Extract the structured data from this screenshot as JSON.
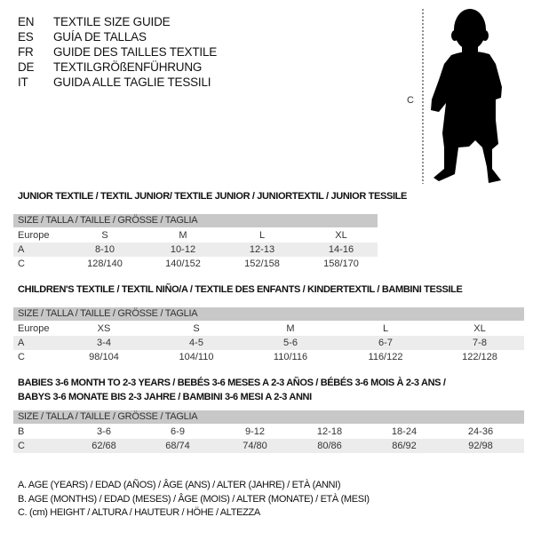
{
  "languages": [
    {
      "code": "EN",
      "text": "TEXTILE SIZE GUIDE"
    },
    {
      "code": "ES",
      "text": "GUÍA DE TALLAS"
    },
    {
      "code": "FR",
      "text": "GUIDE DES TAILLES TEXTILE"
    },
    {
      "code": "DE",
      "text": "TEXTILGRÖßENFÜHRUNG"
    },
    {
      "code": "IT",
      "text": "GUIDA ALLE TAGLIE TESSILI"
    }
  ],
  "figure": {
    "measure_label": "C"
  },
  "tables": [
    {
      "title": "JUNIOR TEXTILE / TEXTIL JUNIOR/ TEXTILE JUNIOR / JUNIORTEXTIL / JUNIOR TESSILE",
      "header": "SIZE / TALLA / TAILLE / GRÖSSE / TAGLIA",
      "rows": [
        {
          "label": "Europe",
          "values": [
            "S",
            "M",
            "L",
            "XL"
          ]
        },
        {
          "label": "A",
          "values": [
            "8-10",
            "10-12",
            "12-13",
            "14-16"
          ]
        },
        {
          "label": "C",
          "values": [
            "128/140",
            "140/152",
            "152/158",
            "158/170"
          ]
        }
      ]
    },
    {
      "title": "CHILDREN'S TEXTILE / TEXTIL NIÑO/A / TEXTILE DES ENFANTS / KINDERTEXTIL / BAMBINI TESSILE",
      "header": "SIZE / TALLA / TAILLE / GRÖSSE / TAGLIA",
      "rows": [
        {
          "label": "Europe",
          "values": [
            "XS",
            "S",
            "M",
            "L",
            "XL"
          ]
        },
        {
          "label": "A",
          "values": [
            "3-4",
            "4-5",
            "5-6",
            "6-7",
            "7-8"
          ]
        },
        {
          "label": "C",
          "values": [
            "98/104",
            "104/110",
            "110/116",
            "116/122",
            "122/128"
          ]
        }
      ]
    },
    {
      "title": "BABIES 3-6 MONTH TO 2-3 YEARS / BEBÉS 3-6 MESES A 2-3 AÑOS / BÉBÉS 3-6 MOIS À 2-3 ANS /",
      "title2": "BABYS 3-6 MONATE BIS 2-3 JAHRE / BAMBINI 3-6 MESI A 2-3 ANNI",
      "header": "SIZE / TALLA / TAILLE / GRÖSSE / TAGLIA",
      "rows": [
        {
          "label": "B",
          "values": [
            "3-6",
            "6-9",
            "9-12",
            "12-18",
            "18-24",
            "24-36"
          ]
        },
        {
          "label": "C",
          "values": [
            "62/68",
            "68/74",
            "74/80",
            "80/86",
            "86/92",
            "92/98"
          ]
        }
      ]
    }
  ],
  "notes": [
    "A. AGE (YEARS) / EDAD (AÑOS) / ÂGE (ANS) / ALTER (JAHRE) / ETÀ (ANNI)",
    "B. AGE (MONTHS) / EDAD (MESES) / ÂGE (MOIS) / ALTER (MONATE) / ETÀ (MESI)",
    "C. (cm) HEIGHT / ALTURA / HAUTEUR / HÖHE / ALTEZZA"
  ],
  "colors": {
    "header_bg": "#c8c8c8",
    "row_shade": "#ececec"
  }
}
